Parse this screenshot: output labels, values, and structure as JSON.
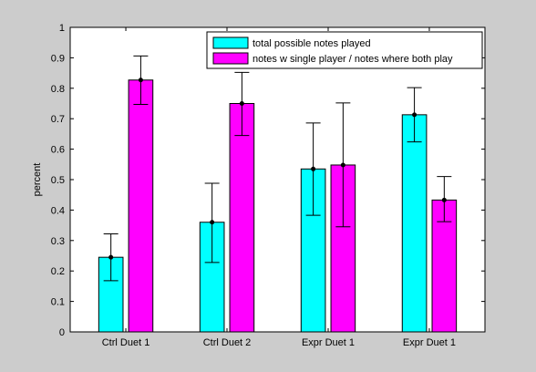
{
  "chart_data": {
    "type": "bar",
    "title": "",
    "xlabel": "",
    "ylabel": "percent",
    "ylim": [
      0,
      1
    ],
    "yticks": [
      0,
      0.1,
      0.2,
      0.3,
      0.4,
      0.5,
      0.6,
      0.7,
      0.8,
      0.9,
      1
    ],
    "ytick_labels": [
      "0",
      "0.1",
      "0.2",
      "0.3",
      "0.4",
      "0.5",
      "0.6",
      "0.7",
      "0.8",
      "0.9",
      "1"
    ],
    "categories": [
      "Ctrl Duet 1",
      "Ctrl Duet 2",
      "Expr Duet 1",
      "Expr Duet 1"
    ],
    "grid": false,
    "legend_position": "top-right",
    "error_bars": true,
    "series": [
      {
        "name": "total possible notes played",
        "color": "#00ffff",
        "values": [
          0.245,
          0.36,
          0.535,
          0.713
        ],
        "err_low": [
          0.168,
          0.228,
          0.383,
          0.624
        ],
        "err_high": [
          0.322,
          0.488,
          0.686,
          0.802
        ]
      },
      {
        "name": "notes w single player / notes where both play",
        "color": "#ff00ff",
        "values": [
          0.827,
          0.75,
          0.548,
          0.433
        ],
        "err_low": [
          0.747,
          0.645,
          0.345,
          0.362
        ],
        "err_high": [
          0.906,
          0.852,
          0.752,
          0.51
        ]
      }
    ]
  }
}
